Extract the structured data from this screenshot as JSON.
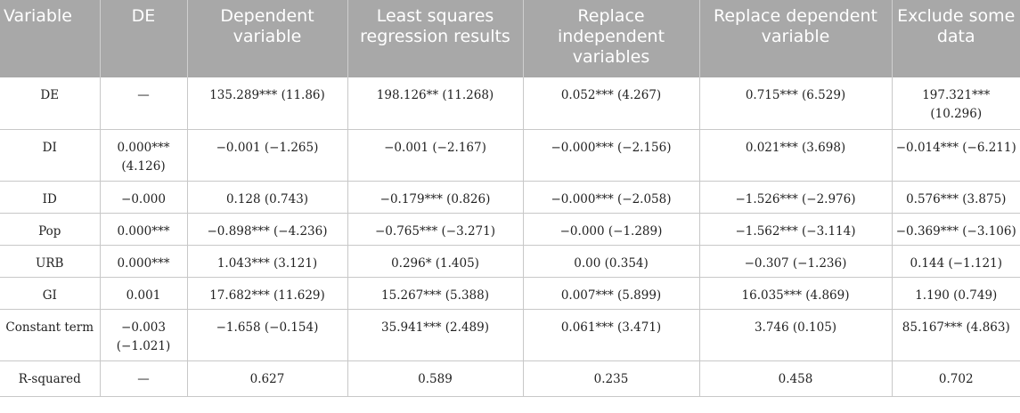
{
  "table": {
    "headers": [
      "Variable",
      "DE",
      "Dependent variable",
      "Least squares regression results",
      "Replace independent variables",
      "Replace dependent variable",
      "Exclude some data"
    ],
    "rows": [
      [
        "DE",
        "—",
        "135.289*** (11.86)",
        "198.126** (11.268)",
        "0.052*** (4.267)",
        "0.715*** (6.529)",
        "197.321*** (10.296)"
      ],
      [
        "DI",
        "0.000*** (4.126)",
        "−0.001 (−1.265)",
        "−0.001 (−2.167)",
        "−0.000*** (−2.156)",
        "0.021*** (3.698)",
        "−0.014*** (−6.211)"
      ],
      [
        "ID",
        "−0.000",
        "0.128 (0.743)",
        "−0.179*** (0.826)",
        "−0.000*** (−2.058)",
        "−1.526*** (−2.976)",
        "0.576*** (3.875)"
      ],
      [
        "Pop",
        "0.000***",
        "−0.898*** (−4.236)",
        "−0.765*** (−3.271)",
        "−0.000 (−1.289)",
        "−1.562*** (−3.114)",
        "−0.369*** (−3.106)"
      ],
      [
        "URB",
        "0.000***",
        "1.043*** (3.121)",
        "0.296* (1.405)",
        "0.00 (0.354)",
        "−0.307 (−1.236)",
        "0.144 (−1.121)"
      ],
      [
        "GI",
        "0.001",
        "17.682*** (11.629)",
        "15.267*** (5.388)",
        "0.007*** (5.899)",
        "16.035*** (4.869)",
        "1.190 (0.749)"
      ],
      [
        "Constant term",
        "−0.003 (−1.021)",
        "−1.658 (−0.154)",
        "35.941*** (2.489)",
        "0.061*** (3.471)",
        "3.746 (0.105)",
        "85.167*** (4.863)"
      ],
      [
        "R-squared",
        "—",
        "0.627",
        "0.589",
        "0.235",
        "0.458",
        "0.702"
      ]
    ]
  }
}
